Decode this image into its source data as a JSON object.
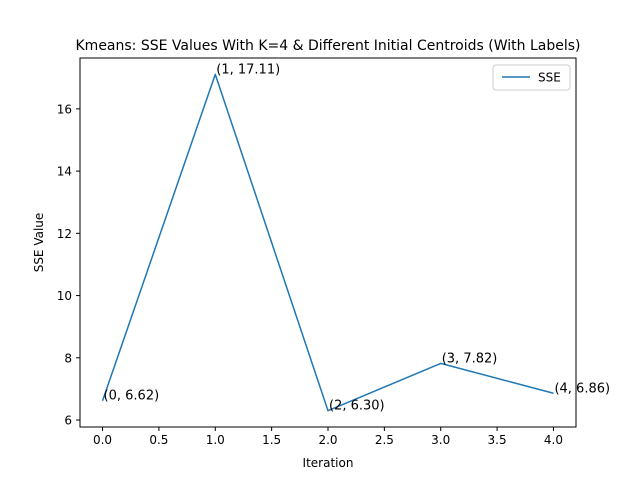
{
  "chart_data": {
    "type": "line",
    "title": "Kmeans: SSE Values With K=4 & Different Initial Centroids (With Labels)",
    "xlabel": "Iteration",
    "ylabel": "SSE Value",
    "xlim": [
      -0.2,
      4.2
    ],
    "ylim": [
      5.776,
      17.635
    ],
    "x_ticks": [
      0.0,
      0.5,
      1.0,
      1.5,
      2.0,
      2.5,
      3.0,
      3.5,
      4.0
    ],
    "x_tick_labels": [
      "0.0",
      "0.5",
      "1.0",
      "1.5",
      "2.0",
      "2.5",
      "3.0",
      "3.5",
      "4.0"
    ],
    "y_ticks": [
      6,
      8,
      10,
      12,
      14,
      16
    ],
    "y_tick_labels": [
      "6",
      "8",
      "10",
      "12",
      "14",
      "16"
    ],
    "grid": false,
    "legend_position": "top-right",
    "series": [
      {
        "name": "SSE",
        "color": "#1f77b4",
        "x": [
          0,
          1,
          2,
          3,
          4
        ],
        "y": [
          6.62,
          17.11,
          6.3,
          7.82,
          6.86
        ],
        "labels": [
          "(0, 6.62)",
          "(1, 17.11)",
          "(2, 6.30)",
          "(3, 7.82)",
          "(4, 6.86)"
        ]
      }
    ]
  }
}
